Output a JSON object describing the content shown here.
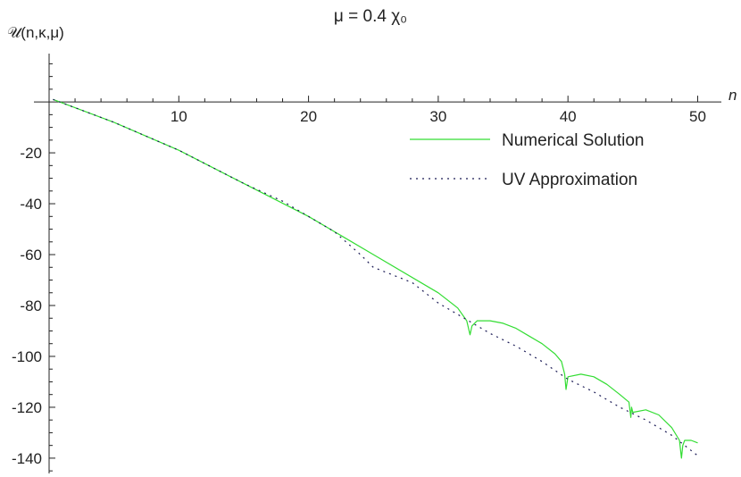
{
  "chart_data": {
    "type": "line",
    "title": "μ = 0.4 χ₀",
    "xlabel": "n",
    "ylabel": "𝒰(n,κ,μ)",
    "xlim": [
      0,
      51
    ],
    "ylim": [
      -146,
      19
    ],
    "x_ticks": [
      10,
      20,
      30,
      40,
      50
    ],
    "x_tick_labels": [
      "10",
      "20",
      "30",
      "40",
      "50"
    ],
    "y_ticks": [
      -20,
      -40,
      -60,
      -80,
      -100,
      -120,
      -140
    ],
    "y_tick_labels": [
      "-20",
      "-40",
      "-60",
      "-80",
      "-100",
      "-120",
      "-140"
    ],
    "grid": false,
    "legend_position": "top-right",
    "series": [
      {
        "name": "Numerical Solution",
        "color": "#33dd33",
        "style": "solid",
        "x": [
          0.3,
          5,
          10,
          15,
          20,
          25,
          30,
          31.5,
          32.2,
          32.45,
          32.6,
          33,
          34,
          35,
          36,
          37,
          38,
          39,
          39.5,
          39.75,
          39.85,
          40,
          41,
          42,
          43,
          44,
          44.7,
          44.85,
          44.9,
          45,
          46,
          47,
          48,
          48.6,
          48.75,
          48.85,
          49,
          49.5,
          50
        ],
        "y": [
          1,
          -8,
          -19,
          -32,
          -45,
          -60,
          -75,
          -81,
          -86,
          -91.5,
          -88,
          -86,
          -86,
          -87,
          -89,
          -92,
          -95,
          -99,
          -102,
          -107,
          -113,
          -108,
          -107,
          -108,
          -111,
          -115,
          -118,
          -124,
          -120,
          -122,
          -121,
          -123,
          -128,
          -133,
          -140,
          -135,
          -133,
          -133,
          -134
        ]
      },
      {
        "name": "UV Approximation",
        "color": "#1a1a55",
        "style": "dotted",
        "x": [
          0.3,
          5,
          10,
          15,
          18,
          20,
          22,
          24,
          25,
          26,
          28,
          30,
          32,
          34,
          36,
          38,
          40,
          42,
          44,
          46,
          48,
          50
        ],
        "y": [
          1,
          -8,
          -19,
          -32,
          -39,
          -45,
          -51,
          -60,
          -65,
          -67,
          -71,
          -79,
          -85,
          -91,
          -96,
          -102,
          -109,
          -114,
          -120,
          -125,
          -131,
          -139
        ]
      }
    ]
  }
}
